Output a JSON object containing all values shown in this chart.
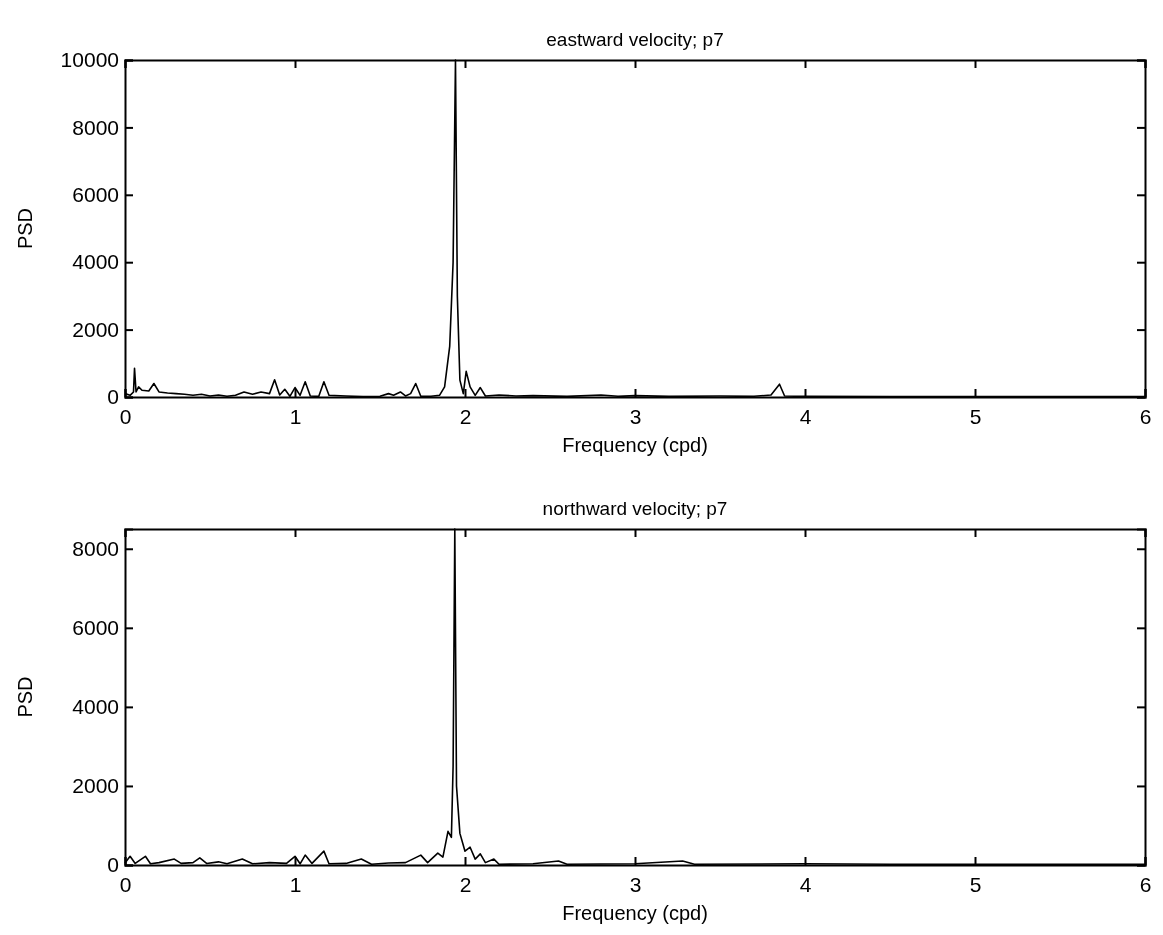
{
  "chart_data": [
    {
      "type": "line",
      "title": "eastward velocity; p7",
      "xlabel": "Frequency (cpd)",
      "ylabel": "PSD",
      "xlim": [
        0,
        6
      ],
      "xticks": [
        0,
        1,
        2,
        3,
        4,
        5,
        6
      ],
      "ylim": [
        0,
        10000
      ],
      "yticks": [
        0,
        2000,
        4000,
        6000,
        8000,
        10000
      ],
      "grid": false,
      "marker": "none",
      "line_style": "solid",
      "series": [
        {
          "color": "#000000",
          "x": [
            0,
            0.03,
            0.05,
            0.056,
            0.065,
            0.08,
            0.1,
            0.14,
            0.17,
            0.2,
            0.25,
            0.3,
            0.35,
            0.4,
            0.45,
            0.5,
            0.55,
            0.6,
            0.65,
            0.7,
            0.75,
            0.8,
            0.85,
            0.88,
            0.91,
            0.94,
            0.97,
            1.0,
            1.03,
            1.06,
            1.09,
            1.14,
            1.17,
            1.2,
            1.3,
            1.4,
            1.5,
            1.55,
            1.58,
            1.62,
            1.65,
            1.68,
            1.71,
            1.74,
            1.8,
            1.85,
            1.88,
            1.91,
            1.93,
            1.944,
            1.955,
            1.97,
            1.99,
            2.007,
            2.03,
            2.06,
            2.09,
            2.12,
            2.2,
            2.3,
            2.4,
            2.6,
            2.8,
            2.9,
            3.0,
            3.2,
            3.5,
            3.7,
            3.8,
            3.85,
            3.88,
            4.0,
            4.5,
            5.0,
            5.5,
            6.0
          ],
          "values": [
            100,
            50,
            150,
            850,
            150,
            300,
            200,
            180,
            400,
            150,
            120,
            100,
            80,
            50,
            80,
            30,
            60,
            20,
            50,
            150,
            80,
            150,
            100,
            510,
            60,
            230,
            20,
            280,
            50,
            450,
            30,
            20,
            450,
            50,
            30,
            10,
            20,
            100,
            50,
            150,
            30,
            100,
            400,
            20,
            20,
            50,
            300,
            1500,
            4000,
            10000,
            3000,
            500,
            100,
            760,
            300,
            50,
            280,
            30,
            60,
            30,
            40,
            20,
            60,
            20,
            40,
            20,
            30,
            20,
            60,
            380,
            30,
            20,
            10,
            10,
            10,
            10
          ]
        }
      ]
    },
    {
      "type": "line",
      "title": "northward velocity; p7",
      "xlabel": "Frequency (cpd)",
      "ylabel": "PSD",
      "xlim": [
        0,
        6
      ],
      "xticks": [
        0,
        1,
        2,
        3,
        4,
        5,
        6
      ],
      "ylim": [
        0,
        8500
      ],
      "yticks": [
        0,
        2000,
        4000,
        6000,
        8000
      ],
      "grid": false,
      "marker": "none",
      "line_style": "solid",
      "series": [
        {
          "color": "#000000",
          "x": [
            0,
            0.03,
            0.06,
            0.12,
            0.15,
            0.2,
            0.29,
            0.33,
            0.4,
            0.44,
            0.48,
            0.55,
            0.6,
            0.69,
            0.75,
            0.85,
            0.95,
            1.0,
            1.03,
            1.06,
            1.1,
            1.17,
            1.2,
            1.3,
            1.39,
            1.45,
            1.55,
            1.65,
            1.74,
            1.78,
            1.84,
            1.87,
            1.9,
            1.92,
            1.93,
            1.94,
            1.95,
            1.97,
            2.0,
            2.03,
            2.06,
            2.09,
            2.12,
            2.17,
            2.2,
            2.4,
            2.55,
            2.6,
            3.0,
            3.28,
            3.35,
            4.0,
            4.5,
            5.0,
            5.5,
            6.0
          ],
          "values": [
            50,
            220,
            40,
            220,
            30,
            60,
            150,
            40,
            60,
            180,
            40,
            80,
            30,
            150,
            30,
            60,
            40,
            220,
            30,
            250,
            40,
            350,
            30,
            40,
            150,
            20,
            50,
            60,
            250,
            60,
            300,
            200,
            850,
            700,
            2500,
            8500,
            2000,
            800,
            350,
            450,
            150,
            280,
            60,
            150,
            20,
            30,
            100,
            20,
            30,
            100,
            20,
            30,
            20,
            20,
            20,
            20
          ]
        }
      ]
    }
  ]
}
